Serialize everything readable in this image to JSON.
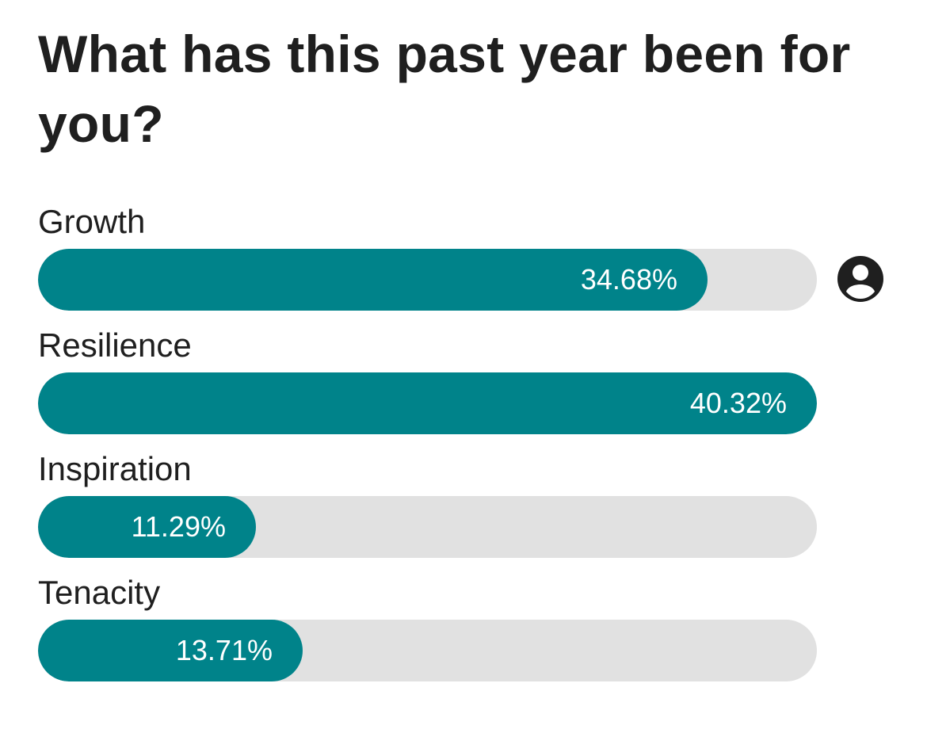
{
  "poll": {
    "question": "What has this past year been for you?",
    "colors": {
      "bar_fill": "#00838a",
      "bar_track": "#e1e1e1",
      "text": "#1f1f1f",
      "percent_text": "#ffffff"
    },
    "options": [
      {
        "label": "Growth",
        "percent": 34.68,
        "percent_text": "34.68%",
        "user_voted": true,
        "icon": "user-voted-icon"
      },
      {
        "label": "Resilience",
        "percent": 40.32,
        "percent_text": "40.32%",
        "user_voted": false
      },
      {
        "label": "Inspiration",
        "percent": 11.29,
        "percent_text": "11.29%",
        "user_voted": false
      },
      {
        "label": "Tenacity",
        "percent": 13.71,
        "percent_text": "13.71%",
        "user_voted": false
      }
    ],
    "max_percent": 40.32
  }
}
